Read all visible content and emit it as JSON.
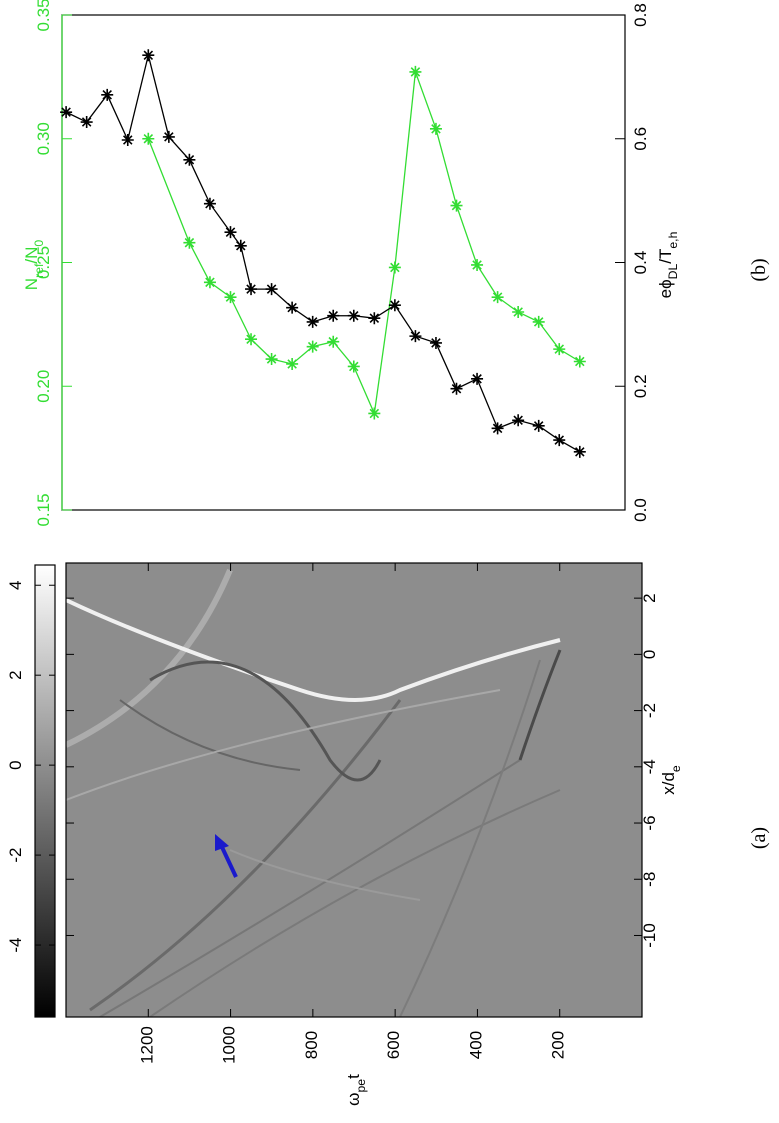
{
  "chart_data": [
    {
      "type": "heatmap",
      "panel_label": "(a)",
      "xlabel": "ω_{pe}t",
      "xlim": [
        0,
        1400
      ],
      "xticks": [
        200,
        400,
        600,
        800,
        1000,
        1200
      ],
      "ylabel": "x/d_{e}",
      "ylim": [
        -12.9,
        3.25
      ],
      "yticks": [
        -10,
        -8,
        -6,
        -4,
        -2,
        0,
        2
      ],
      "clim": [
        -5.6,
        4.45
      ],
      "cticks": [
        -4,
        -2,
        0,
        2,
        4
      ],
      "colormap": [
        "#000000",
        "#ffffff"
      ]
    },
    {
      "type": "line",
      "panel_label": "(b)",
      "xlim": [
        40,
        1410
      ],
      "ylabel": "N_{ref}/N_{0}",
      "ycolor": "#33dd33",
      "ylim": [
        0.15,
        0.35
      ],
      "yticks": [
        0.15,
        {
          "value": 0.2,
          "label": "0.20"
        },
        0.25,
        {
          "value": 0.3,
          "label": "0.30"
        },
        0.35
      ],
      "y2label": "eϕ_{DL}/T_{e,h}",
      "y2lim": [
        0,
        0.8
      ],
      "y2ticks": [
        {
          "value": 0,
          "label": "0.0"
        },
        0.2,
        0.4,
        0.6,
        0.8
      ],
      "series": [
        {
          "color": "#33dd33",
          "x": [
            1200,
            1100,
            1050,
            1000,
            950,
            900,
            850,
            800,
            750,
            700,
            650,
            600,
            550,
            500,
            450,
            400,
            350,
            300,
            250,
            200,
            150
          ],
          "values": [
            0.3,
            0.258,
            0.242,
            0.236,
            0.219,
            0.211,
            0.209,
            0.216,
            0.218,
            0.208,
            0.189,
            0.248,
            0.327,
            0.304,
            0.273,
            0.249,
            0.236,
            0.23,
            0.226,
            0.215,
            0.21
          ]
        },
        {
          "color": "#000000",
          "axis": "y2",
          "x": [
            1400,
            1350,
            1300,
            1250,
            1200,
            1150,
            1100,
            1050,
            1000,
            975,
            950,
            900,
            850,
            800,
            750,
            700,
            650,
            600,
            550,
            500,
            450,
            400,
            350,
            300,
            250,
            200,
            150
          ],
          "values": [
            0.643,
            0.627,
            0.671,
            0.598,
            0.735,
            0.603,
            0.566,
            0.495,
            0.449,
            0.427,
            0.357,
            0.357,
            0.327,
            0.304,
            0.314,
            0.314,
            0.31,
            0.331,
            0.281,
            0.27,
            0.196,
            0.212,
            0.132,
            0.145,
            0.136,
            0.113,
            0.094
          ]
        }
      ]
    }
  ]
}
